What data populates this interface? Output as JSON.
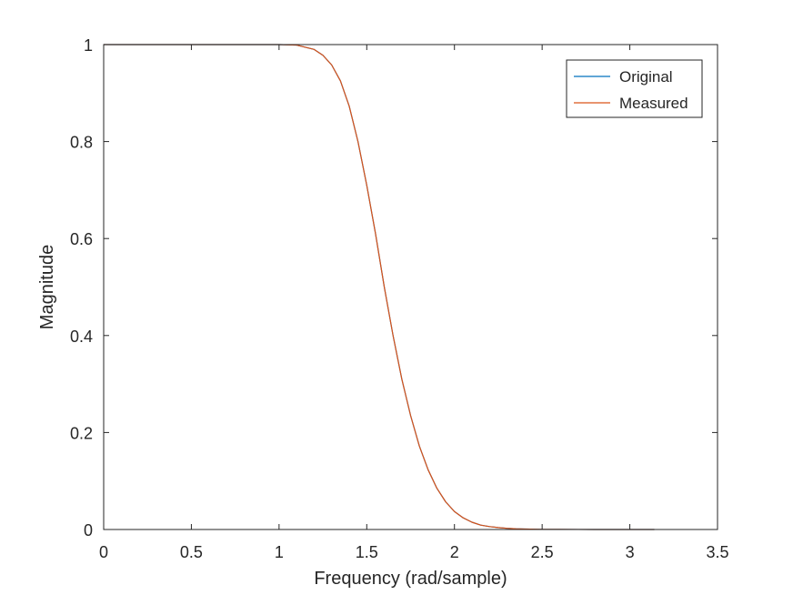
{
  "chart_data": {
    "type": "line",
    "title": "",
    "xlabel": "Frequency (rad/sample)",
    "ylabel": "Magnitude",
    "xlim": [
      0,
      3.5
    ],
    "ylim": [
      0,
      1
    ],
    "xticks": [
      0,
      0.5,
      1,
      1.5,
      2,
      2.5,
      3,
      3.5
    ],
    "xtick_labels": [
      "0",
      "0.5",
      "1",
      "1.5",
      "2",
      "2.5",
      "3",
      "3.5"
    ],
    "yticks": [
      0,
      0.2,
      0.4,
      0.6,
      0.8,
      1
    ],
    "ytick_labels": [
      "0",
      "0.2",
      "0.4",
      "0.6",
      "0.8",
      "1"
    ],
    "grid": false,
    "legend_position": "top-right",
    "series": [
      {
        "name": "Original",
        "color": "#0072BD",
        "x": [
          0,
          0.5,
          1.0,
          1.1,
          1.2,
          1.25,
          1.3,
          1.35,
          1.4,
          1.45,
          1.5,
          1.55,
          1.6,
          1.65,
          1.7,
          1.75,
          1.8,
          1.85,
          1.9,
          1.95,
          2.0,
          2.05,
          2.1,
          2.15,
          2.2,
          2.25,
          2.3,
          2.35,
          2.4,
          2.5,
          2.6,
          2.8,
          3.14
        ],
        "y": [
          1,
          1,
          1,
          0.999,
          0.99,
          0.978,
          0.958,
          0.925,
          0.873,
          0.8,
          0.71,
          0.61,
          0.5,
          0.4,
          0.31,
          0.235,
          0.172,
          0.123,
          0.085,
          0.057,
          0.037,
          0.024,
          0.015,
          0.009,
          0.006,
          0.004,
          0.0025,
          0.0015,
          0.001,
          0.0004,
          0.0002,
          0,
          0
        ]
      },
      {
        "name": "Measured",
        "color": "#D95319",
        "x": [
          0,
          0.5,
          1.0,
          1.1,
          1.2,
          1.25,
          1.3,
          1.35,
          1.4,
          1.45,
          1.5,
          1.55,
          1.6,
          1.65,
          1.7,
          1.75,
          1.8,
          1.85,
          1.9,
          1.95,
          2.0,
          2.05,
          2.1,
          2.15,
          2.2,
          2.25,
          2.3,
          2.35,
          2.4,
          2.5,
          2.6,
          2.8,
          3.14
        ],
        "y": [
          1,
          1,
          1,
          0.999,
          0.99,
          0.978,
          0.958,
          0.925,
          0.873,
          0.8,
          0.71,
          0.61,
          0.5,
          0.4,
          0.31,
          0.235,
          0.172,
          0.123,
          0.085,
          0.057,
          0.037,
          0.024,
          0.015,
          0.009,
          0.006,
          0.004,
          0.0025,
          0.0015,
          0.001,
          0.0004,
          0.0002,
          0,
          0
        ]
      }
    ]
  }
}
